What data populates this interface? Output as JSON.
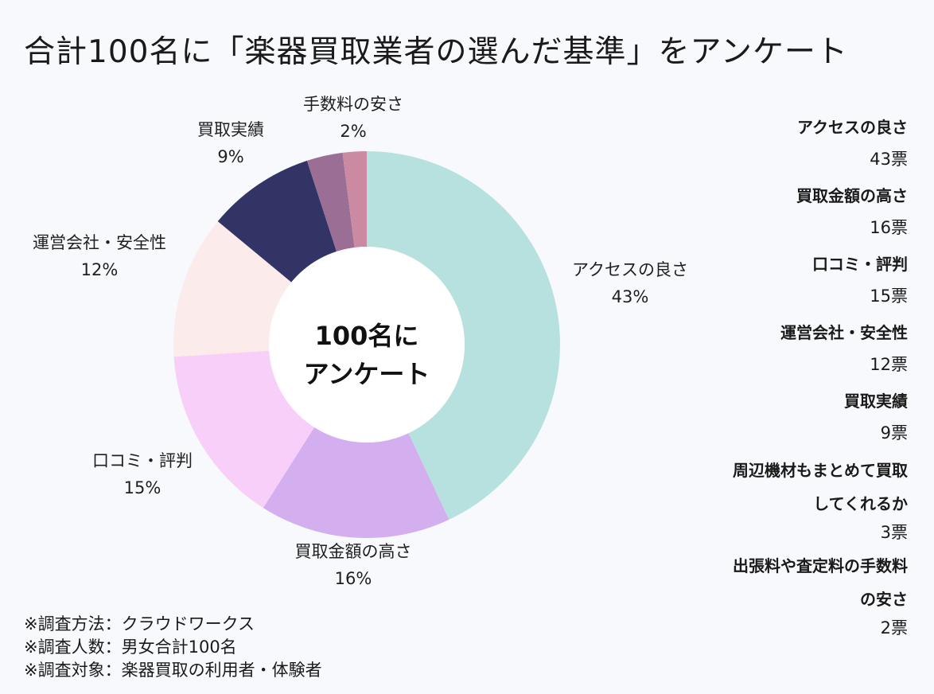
{
  "title": "合計100名に「楽器買取業者の選んだ基準」をアンケート",
  "center_label": [
    "100名に",
    "アンケート"
  ],
  "notes": [
    "※調査方法：クラウドワークス",
    "※調査人数：男女合計100名",
    "※調査対象：楽器買取の利用者・体験者"
  ],
  "legend": [
    {
      "label": [
        "アクセスの良さ"
      ],
      "value": "43票"
    },
    {
      "label": [
        "買取金額の高さ"
      ],
      "value": "16票"
    },
    {
      "label": [
        "口コミ・評判"
      ],
      "value": "15票"
    },
    {
      "label": [
        "運営会社・安全性"
      ],
      "value": "12票"
    },
    {
      "label": [
        "買取実績"
      ],
      "value": "9票"
    },
    {
      "label": [
        "周辺機材もまとめて買取",
        "してくれるか"
      ],
      "value": "3票"
    },
    {
      "label": [
        "出張料や査定料の手数料",
        "の安さ"
      ],
      "value": "2票"
    }
  ],
  "chart_data": {
    "type": "pie",
    "donut": true,
    "title": "合計100名に「楽器買取業者の選んだ基準」をアンケート",
    "categories": [
      "アクセスの良さ",
      "買取金額の高さ",
      "口コミ・評判",
      "運営会社・安全性",
      "買取実績",
      "周辺機材もまとめて買取してくれるか",
      "手数料の安さ"
    ],
    "values": [
      43,
      16,
      15,
      12,
      9,
      3,
      2
    ],
    "data_labels": [
      "43%",
      "16%",
      "15%",
      "12%",
      "9%",
      "",
      "2%"
    ],
    "slice_labels": [
      "アクセスの良さ",
      "買取金額の高さ",
      "口コミ・評判",
      "運営会社・安全性",
      "買取実績",
      "",
      "手数料の安さ"
    ],
    "colors": [
      "#b6e1df",
      "#d4aff0",
      "#f7cff8",
      "#fbebea",
      "#313465",
      "#9b6e96",
      "#cc8aa2"
    ]
  }
}
